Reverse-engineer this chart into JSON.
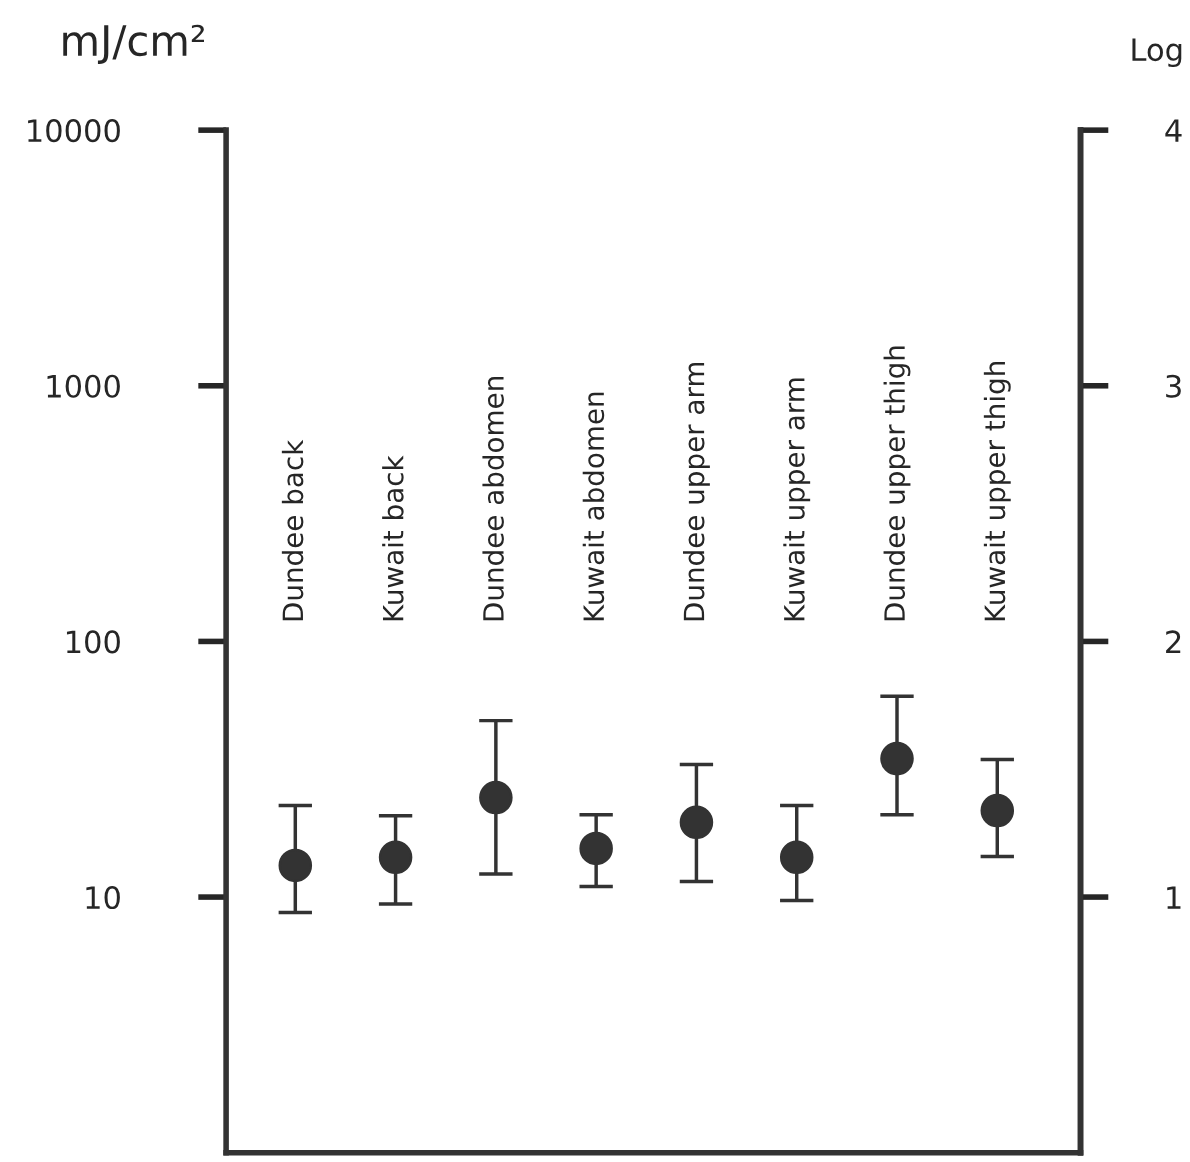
{
  "chart_data": {
    "type": "scatter",
    "ylabel": "mJ/cm²",
    "y2label": "Log",
    "categories": [
      "Dundee back",
      "Kuwait back",
      "Dundee abdomen",
      "Kuwait abdomen",
      "Dundee upper arm",
      "Kuwait upper arm",
      "Dundee upper thigh",
      "Kuwait upper thigh"
    ],
    "series": [
      {
        "color": "#333333",
        "values": [
          13.3,
          14.3,
          24.5,
          15.5,
          19.6,
          14.3,
          34.8,
          21.8
        ],
        "errors": [
          [
            8.7,
            22.8
          ],
          [
            9.4,
            20.8
          ],
          [
            12.3,
            49
          ],
          [
            11,
            21
          ],
          [
            11.5,
            33
          ],
          [
            9.7,
            22.8
          ],
          [
            21,
            61
          ],
          [
            14.4,
            34.5
          ]
        ]
      }
    ],
    "log": "y",
    "ylim": [
      1,
      10000
    ],
    "yticks": [
      10,
      100,
      1000,
      10000
    ],
    "y2lim": [
      0,
      4
    ],
    "y2ticks": [
      1,
      2,
      3,
      4
    ],
    "marker": "circle",
    "grid": false,
    "legend": false
  }
}
